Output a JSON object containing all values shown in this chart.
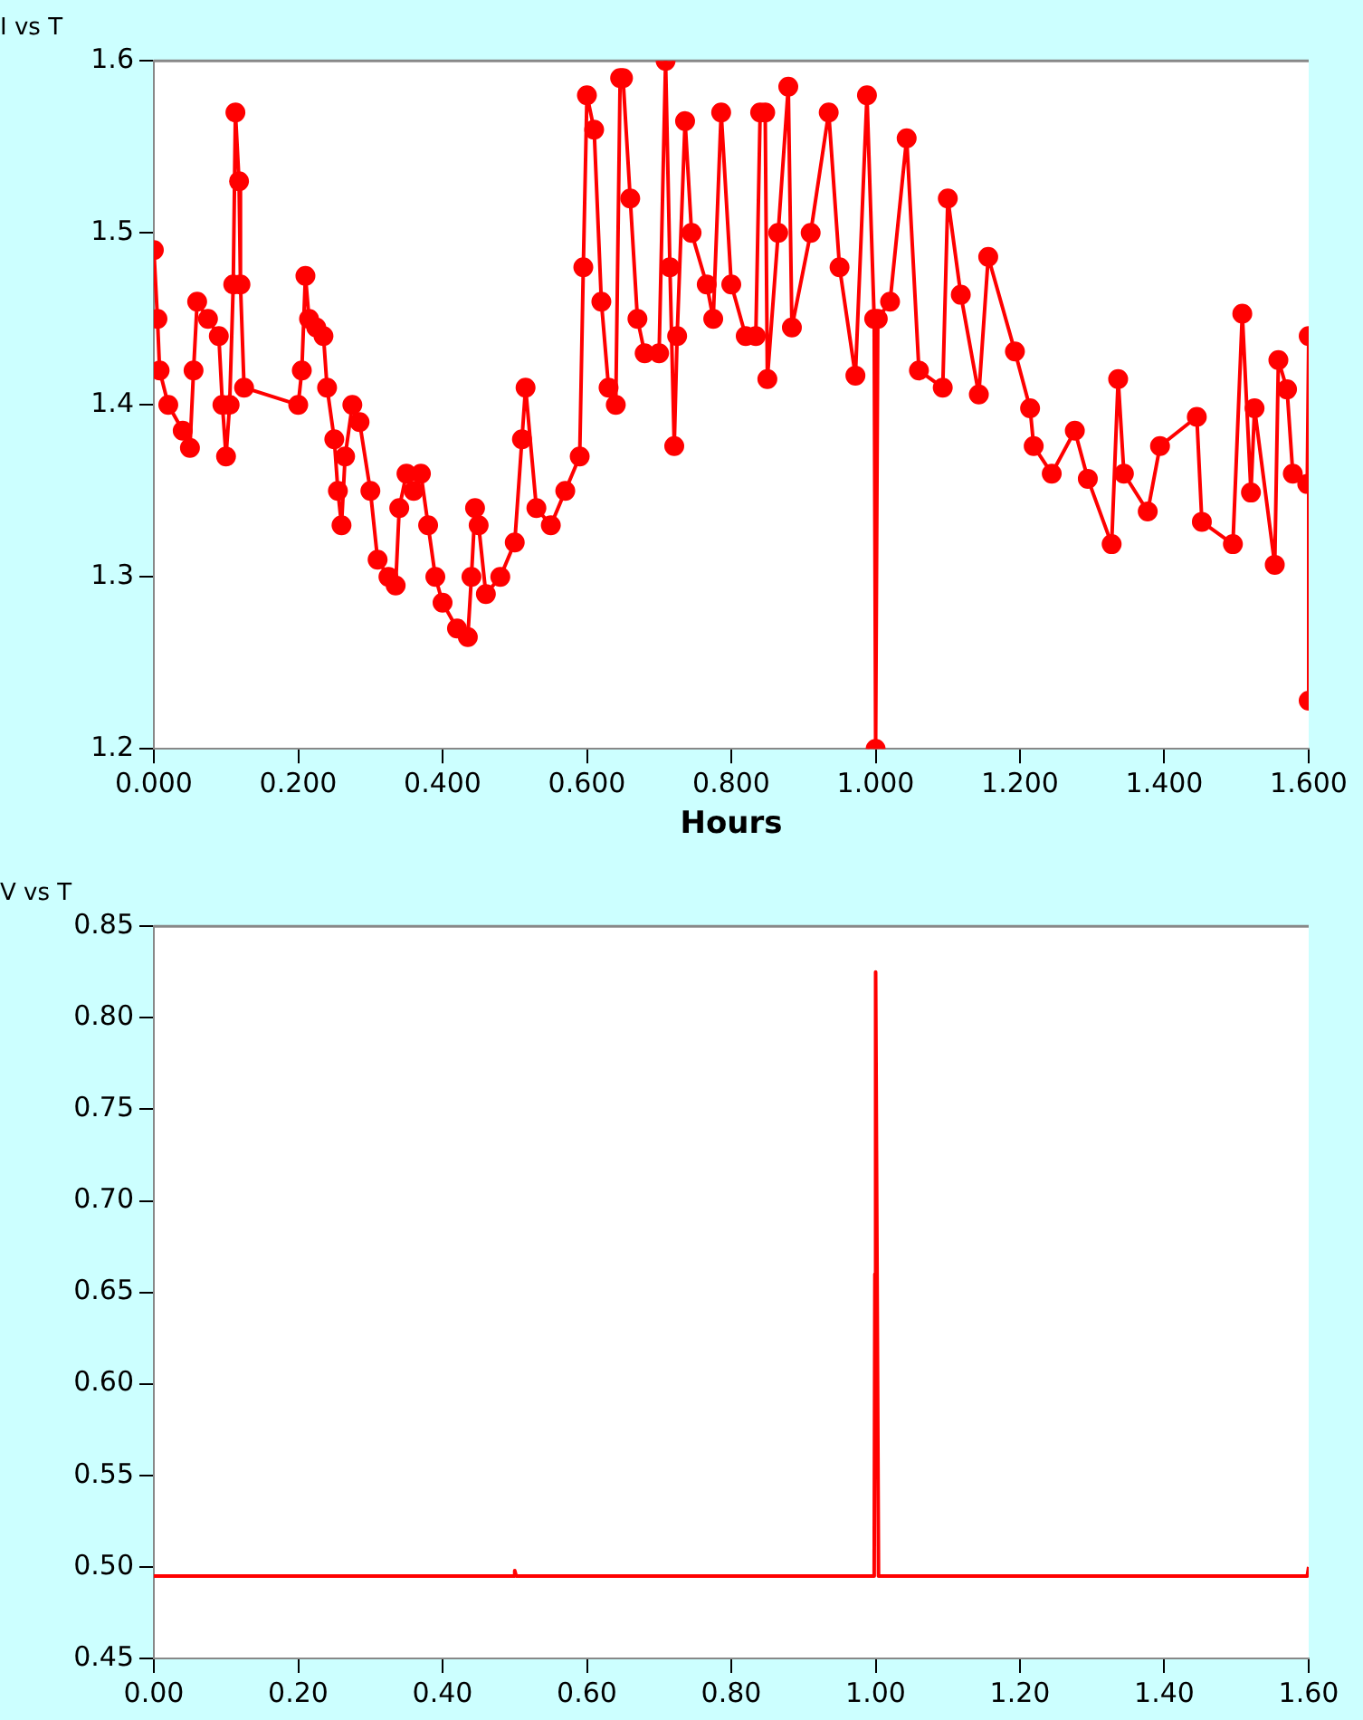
{
  "chart_data": [
    {
      "type": "line",
      "title": "I vs T",
      "xlabel": "Hours",
      "marker": "circle",
      "line_style": "solid",
      "grid": false,
      "legend": false,
      "xlim": [
        0,
        1.6
      ],
      "xticks": [
        {
          "value": 0,
          "label": "0.000"
        },
        {
          "value": 0.2,
          "label": "0.200"
        },
        {
          "value": 0.4,
          "label": "0.400"
        },
        {
          "value": 0.6,
          "label": "0.600"
        },
        {
          "value": 0.8,
          "label": "0.800"
        },
        {
          "value": 1,
          "label": "1.000"
        },
        {
          "value": 1.2,
          "label": "1.200"
        },
        {
          "value": 1.4,
          "label": "1.400"
        },
        {
          "value": 1.6,
          "label": "1.600"
        }
      ],
      "ylim": [
        1.2,
        1.6
      ],
      "yticks": [
        1.2,
        1.3,
        1.4,
        1.5,
        1.6
      ],
      "series": [
        {
          "color": "#ff0000",
          "x": [
            0,
            0.005,
            0.008,
            0.02,
            0.04,
            0.05,
            0.055,
            0.06,
            0.075,
            0.09,
            0.095,
            0.1,
            0.105,
            0.11,
            0.113,
            0.118,
            0.12,
            0.125,
            0.2,
            0.205,
            0.21,
            0.215,
            0.225,
            0.235,
            0.24,
            0.25,
            0.255,
            0.26,
            0.265,
            0.275,
            0.285,
            0.3,
            0.31,
            0.325,
            0.335,
            0.34,
            0.35,
            0.36,
            0.37,
            0.38,
            0.39,
            0.4,
            0.42,
            0.435,
            0.44,
            0.445,
            0.45,
            0.46,
            0.48,
            0.5,
            0.51,
            0.515,
            0.53,
            0.55,
            0.57,
            0.59,
            0.595,
            0.6,
            0.61,
            0.62,
            0.63,
            0.64,
            0.646,
            0.65,
            0.66,
            0.67,
            0.68,
            0.7,
            0.709,
            0.715,
            0.721,
            0.725,
            0.736,
            0.745,
            0.766,
            0.775,
            0.786,
            0.8,
            0.82,
            0.834,
            0.84,
            0.847,
            0.85,
            0.865,
            0.879,
            0.884,
            0.91,
            0.935,
            0.95,
            0.972,
            0.988,
            0.998,
            1.0,
            1.003,
            1.02,
            1.043,
            1.06,
            1.093,
            1.1,
            1.118,
            1.143,
            1.156,
            1.193,
            1.214,
            1.219,
            1.244,
            1.276,
            1.294,
            1.327,
            1.336,
            1.344,
            1.377,
            1.394,
            1.445,
            1.452,
            1.495,
            1.508,
            1.52,
            1.525,
            1.553,
            1.558,
            1.57,
            1.578,
            1.598,
            1.6,
            1.6
          ],
          "values": [
            1.49,
            1.45,
            1.42,
            1.4,
            1.385,
            1.375,
            1.42,
            1.46,
            1.45,
            1.44,
            1.4,
            1.37,
            1.4,
            1.47,
            1.57,
            1.53,
            1.47,
            1.41,
            1.4,
            1.42,
            1.475,
            1.45,
            1.445,
            1.44,
            1.41,
            1.38,
            1.35,
            1.33,
            1.37,
            1.4,
            1.39,
            1.35,
            1.31,
            1.3,
            1.295,
            1.34,
            1.36,
            1.35,
            1.36,
            1.33,
            1.3,
            1.285,
            1.27,
            1.265,
            1.3,
            1.34,
            1.33,
            1.29,
            1.3,
            1.32,
            1.38,
            1.41,
            1.34,
            1.33,
            1.35,
            1.37,
            1.48,
            1.58,
            1.56,
            1.46,
            1.41,
            1.4,
            1.59,
            1.59,
            1.52,
            1.45,
            1.43,
            1.43,
            1.6,
            1.48,
            1.376,
            1.44,
            1.565,
            1.5,
            1.47,
            1.45,
            1.57,
            1.47,
            1.44,
            1.44,
            1.57,
            1.57,
            1.415,
            1.5,
            1.585,
            1.445,
            1.5,
            1.57,
            1.48,
            1.417,
            1.58,
            1.45,
            1.2,
            1.45,
            1.46,
            1.555,
            1.42,
            1.41,
            1.52,
            1.464,
            1.406,
            1.486,
            1.431,
            1.398,
            1.376,
            1.36,
            1.385,
            1.357,
            1.319,
            1.415,
            1.36,
            1.338,
            1.376,
            1.393,
            1.332,
            1.319,
            1.453,
            1.349,
            1.398,
            1.307,
            1.426,
            1.409,
            1.36,
            1.354,
            1.44,
            1.228
          ]
        }
      ]
    },
    {
      "type": "line",
      "title": "V vs T",
      "marker": "none",
      "line_style": "solid",
      "grid": false,
      "legend": false,
      "xlim": [
        0,
        1.6
      ],
      "xticks": [
        {
          "value": 0,
          "label": "0.00"
        },
        {
          "value": 0.2,
          "label": "0.20"
        },
        {
          "value": 0.4,
          "label": "0.40"
        },
        {
          "value": 0.6,
          "label": "0.60"
        },
        {
          "value": 0.8,
          "label": "0.80"
        },
        {
          "value": 1,
          "label": "1.00"
        },
        {
          "value": 1.2,
          "label": "1.20"
        },
        {
          "value": 1.4,
          "label": "1.40"
        },
        {
          "value": 1.6,
          "label": "1.60"
        }
      ],
      "ylim": [
        0.45,
        0.85
      ],
      "yticks": [
        0.45,
        {
          "value": 0.5,
          "label": "0.50"
        },
        0.55,
        {
          "value": 0.6,
          "label": "0.60"
        },
        0.65,
        {
          "value": 0.7,
          "label": "0.70"
        },
        0.75,
        {
          "value": 0.8,
          "label": "0.80"
        },
        0.85
      ],
      "series": [
        {
          "color": "#ff0000",
          "x": [
            0,
            0.5,
            0.5,
            0.502,
            0.998,
            0.999,
            1.0,
            1.002,
            1.004,
            1.598,
            1.6
          ],
          "values": [
            0.495,
            0.495,
            0.498,
            0.495,
            0.495,
            0.66,
            0.825,
            0.66,
            0.495,
            0.495,
            0.5
          ]
        }
      ]
    }
  ]
}
